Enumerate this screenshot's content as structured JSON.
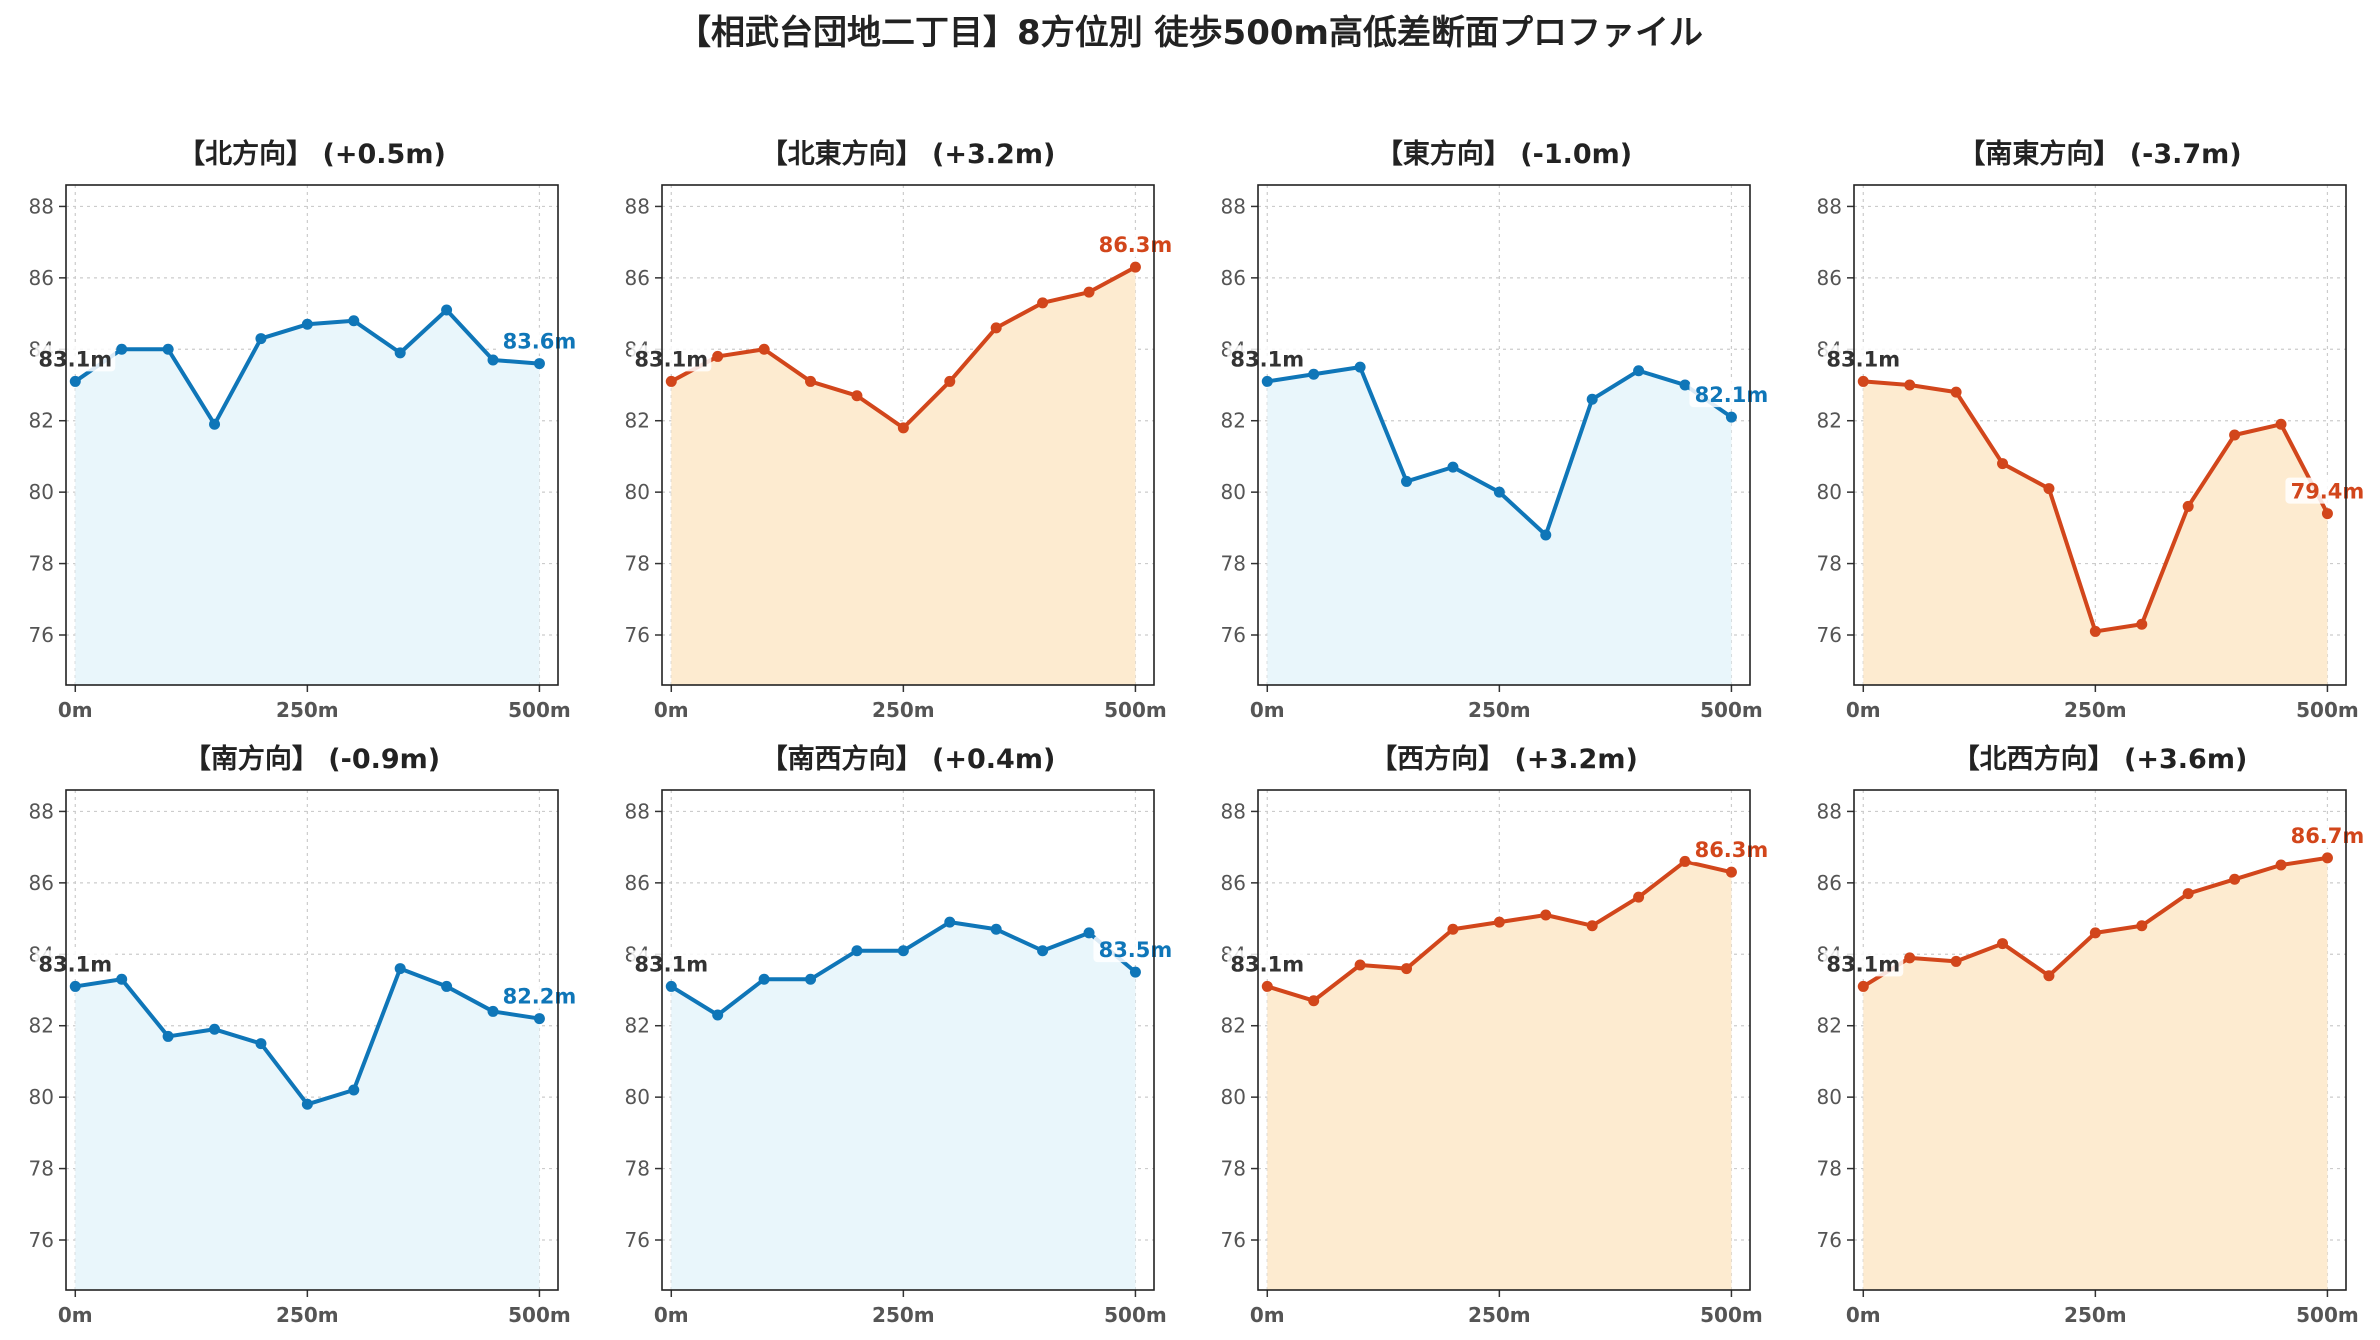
{
  "figure": {
    "title": "【相武台団地二丁目】8方位別 徒歩500m高低差断面プロファイル"
  },
  "colors": {
    "up_line": "#d2461b",
    "up_fill": "#fdebd0",
    "down_line": "#0f76b8",
    "down_fill": "#e9f6fb",
    "start_label": "#333333",
    "grid": "#cccccc"
  },
  "chart_data": [
    {
      "type": "line",
      "title": "【北方向】 (+0.5m)",
      "trend": "down",
      "x": [
        0,
        50,
        100,
        150,
        200,
        250,
        300,
        350,
        400,
        450,
        500
      ],
      "y": [
        83.1,
        84.0,
        84.0,
        81.9,
        84.3,
        84.7,
        84.8,
        83.9,
        85.1,
        83.7,
        83.6
      ],
      "start_label": "83.1m",
      "end_label": "83.6m",
      "xticks": [
        "0m",
        "250m",
        "500m"
      ],
      "yticks": [
        "76",
        "78",
        "80",
        "82",
        "84",
        "86",
        "88"
      ],
      "ylim": [
        74.6,
        88.6
      ],
      "grid": true
    },
    {
      "type": "line",
      "title": "【北東方向】 (+3.2m)",
      "trend": "up",
      "x": [
        0,
        50,
        100,
        150,
        200,
        250,
        300,
        350,
        400,
        450,
        500
      ],
      "y": [
        83.1,
        83.8,
        84.0,
        83.1,
        82.7,
        81.8,
        83.1,
        84.6,
        85.3,
        85.6,
        86.3
      ],
      "start_label": "83.1m",
      "end_label": "86.3m",
      "xticks": [
        "0m",
        "250m",
        "500m"
      ],
      "yticks": [
        "76",
        "78",
        "80",
        "82",
        "84",
        "86",
        "88"
      ],
      "ylim": [
        74.6,
        88.6
      ],
      "grid": true
    },
    {
      "type": "line",
      "title": "【東方向】 (-1.0m)",
      "trend": "down",
      "x": [
        0,
        50,
        100,
        150,
        200,
        250,
        300,
        350,
        400,
        450,
        500
      ],
      "y": [
        83.1,
        83.3,
        83.5,
        80.3,
        80.7,
        80.0,
        78.8,
        82.6,
        83.4,
        83.0,
        82.1
      ],
      "start_label": "83.1m",
      "end_label": "82.1m",
      "xticks": [
        "0m",
        "250m",
        "500m"
      ],
      "yticks": [
        "76",
        "78",
        "80",
        "82",
        "84",
        "86",
        "88"
      ],
      "ylim": [
        74.6,
        88.6
      ],
      "grid": true
    },
    {
      "type": "line",
      "title": "【南東方向】 (-3.7m)",
      "trend": "up",
      "x": [
        0,
        50,
        100,
        150,
        200,
        250,
        300,
        350,
        400,
        450,
        500
      ],
      "y": [
        83.1,
        83.0,
        82.8,
        80.8,
        80.1,
        76.1,
        76.3,
        79.6,
        81.6,
        81.9,
        79.4
      ],
      "start_label": "83.1m",
      "end_label": "79.4m",
      "xticks": [
        "0m",
        "250m",
        "500m"
      ],
      "yticks": [
        "76",
        "78",
        "80",
        "82",
        "84",
        "86",
        "88"
      ],
      "ylim": [
        74.6,
        88.6
      ],
      "grid": true
    },
    {
      "type": "line",
      "title": "【南方向】 (-0.9m)",
      "trend": "down",
      "x": [
        0,
        50,
        100,
        150,
        200,
        250,
        300,
        350,
        400,
        450,
        500
      ],
      "y": [
        83.1,
        83.3,
        81.7,
        81.9,
        81.5,
        79.8,
        80.2,
        83.6,
        83.1,
        82.4,
        82.2
      ],
      "start_label": "83.1m",
      "end_label": "82.2m",
      "xticks": [
        "0m",
        "250m",
        "500m"
      ],
      "yticks": [
        "76",
        "78",
        "80",
        "82",
        "84",
        "86",
        "88"
      ],
      "ylim": [
        74.6,
        88.6
      ],
      "grid": true
    },
    {
      "type": "line",
      "title": "【南西方向】 (+0.4m)",
      "trend": "down",
      "x": [
        0,
        50,
        100,
        150,
        200,
        250,
        300,
        350,
        400,
        450,
        500
      ],
      "y": [
        83.1,
        82.3,
        83.3,
        83.3,
        84.1,
        84.1,
        84.9,
        84.7,
        84.1,
        84.6,
        83.5
      ],
      "start_label": "83.1m",
      "end_label": "83.5m",
      "xticks": [
        "0m",
        "250m",
        "500m"
      ],
      "yticks": [
        "76",
        "78",
        "80",
        "82",
        "84",
        "86",
        "88"
      ],
      "ylim": [
        74.6,
        88.6
      ],
      "grid": true
    },
    {
      "type": "line",
      "title": "【西方向】 (+3.2m)",
      "trend": "up",
      "x": [
        0,
        50,
        100,
        150,
        200,
        250,
        300,
        350,
        400,
        450,
        500
      ],
      "y": [
        83.1,
        82.7,
        83.7,
        83.6,
        84.7,
        84.9,
        85.1,
        84.8,
        85.6,
        86.6,
        86.3
      ],
      "start_label": "83.1m",
      "end_label": "86.3m",
      "xticks": [
        "0m",
        "250m",
        "500m"
      ],
      "yticks": [
        "76",
        "78",
        "80",
        "82",
        "84",
        "86",
        "88"
      ],
      "ylim": [
        74.6,
        88.6
      ],
      "grid": true
    },
    {
      "type": "line",
      "title": "【北西方向】 (+3.6m)",
      "trend": "up",
      "x": [
        0,
        50,
        100,
        150,
        200,
        250,
        300,
        350,
        400,
        450,
        500
      ],
      "y": [
        83.1,
        83.9,
        83.8,
        84.3,
        83.4,
        84.6,
        84.8,
        85.7,
        86.1,
        86.5,
        86.7
      ],
      "start_label": "83.1m",
      "end_label": "86.7m",
      "xticks": [
        "0m",
        "250m",
        "500m"
      ],
      "yticks": [
        "76",
        "78",
        "80",
        "82",
        "84",
        "86",
        "88"
      ],
      "ylim": [
        74.6,
        88.6
      ],
      "grid": true
    }
  ]
}
